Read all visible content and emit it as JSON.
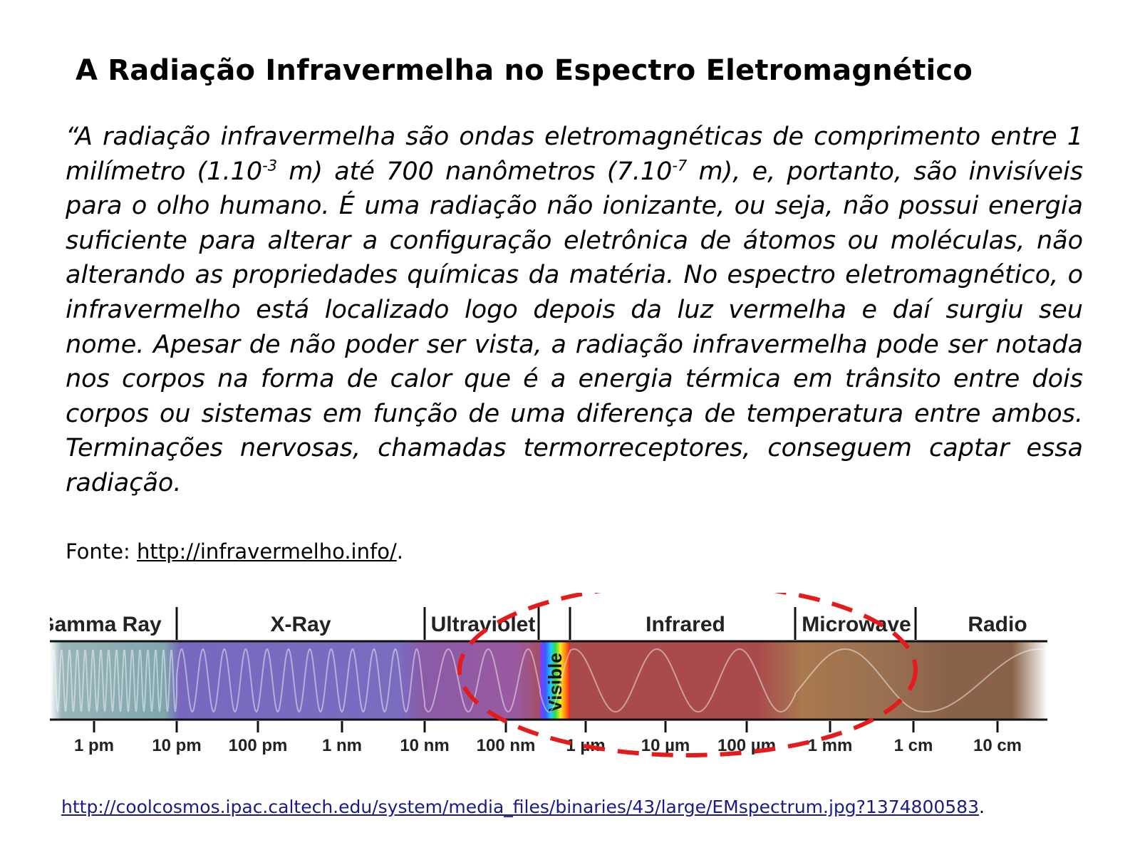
{
  "page": {
    "title": "A Radiação Infravermelha no Espectro Eletromagnético",
    "quote": {
      "open_mark": "“",
      "p1": "A radiação infravermelha são ondas eletromagnéticas de comprimento entre 1 milímetro (1.10",
      "exp1": "-3",
      "p2": " m) até 700 nanômetros (7.10",
      "exp2": "-7",
      "p3": " m), e, portanto, são invisíveis para o olho humano. É uma radiação não ionizante, ou seja, não possui energia suficiente para alterar a configuração eletrônica de átomos ou moléculas, não alterando as propriedades químicas da matéria. No espectro eletromagnético, o infravermelho está localizado logo depois da luz vermelha e daí surgiu seu nome. Apesar de não poder ser vista, a radiação infravermelha pode ser notada nos corpos na forma de calor que é a energia térmica em trânsito entre dois corpos ou sistemas em função de uma diferença de temperatura entre ambos. Terminações nervosas, chamadas termorreceptores, conseguem captar essa radiação."
    },
    "source": {
      "label": "Fonte: ",
      "link": "http://infravermelho.info/",
      "suffix": "."
    },
    "image_source": {
      "link": "http://coolcosmos.ipac.caltech.edu/system/media_files/binaries/43/large/EMspectrum.jpg?1374800583",
      "suffix": "."
    }
  },
  "spectrum": {
    "bands": [
      {
        "name": "Gamma Ray",
        "color": "#7fa6ad"
      },
      {
        "name": "X-Ray",
        "color": "#7b6cc0"
      },
      {
        "name": "Ultraviolet",
        "color": "#8a5aa6"
      },
      {
        "name": "Visible",
        "color": "#ffffff"
      },
      {
        "name": "Infrared",
        "color": "#a94b4d"
      },
      {
        "name": "Microwave",
        "color": "#a9794f"
      },
      {
        "name": "Radio",
        "color": "#8a6249"
      }
    ],
    "scale": [
      "1 pm",
      "10 pm",
      "100 pm",
      "1 nm",
      "10 nm",
      "100 nm",
      "1 µm",
      "10 µm",
      "100 µm",
      "1 mm",
      "1 cm",
      "10 cm"
    ],
    "highlight": "Infrared",
    "highlight_color": "#e51b1b"
  }
}
